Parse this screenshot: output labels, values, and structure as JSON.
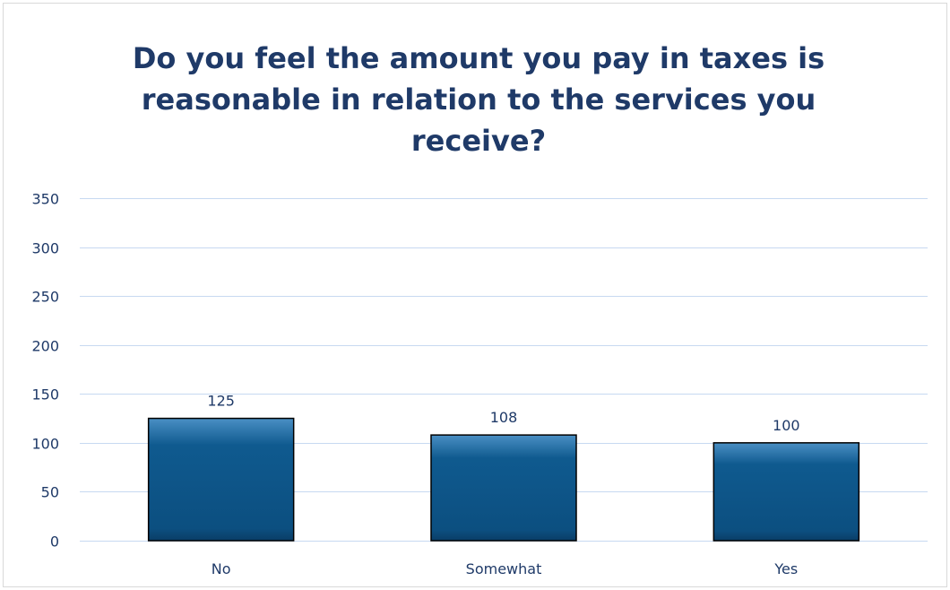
{
  "chart_data": {
    "type": "bar",
    "title": "Do you feel the amount you pay in taxes is reasonable in relation to the services you receive?",
    "categories": [
      "No",
      "Somewhat",
      "Yes"
    ],
    "values": [
      125,
      108,
      100
    ],
    "data_labels": [
      "125",
      "108",
      "100"
    ],
    "xlabel": "",
    "ylabel": "",
    "ylim": [
      0,
      350
    ],
    "yticks": [
      0,
      50,
      100,
      150,
      200,
      250,
      300,
      350
    ],
    "ytick_labels": [
      "0",
      "50",
      "100",
      "150",
      "200",
      "250",
      "300",
      "350"
    ],
    "grid": true,
    "legend": "none",
    "colors": {
      "bar_top": "#4a8fc4",
      "bar_mid": "#0f5a8f",
      "bar_bottom": "#0a3d66",
      "bar_edge": "#000000",
      "grid": "#c7d9f1",
      "text": "#1f3a68"
    }
  }
}
